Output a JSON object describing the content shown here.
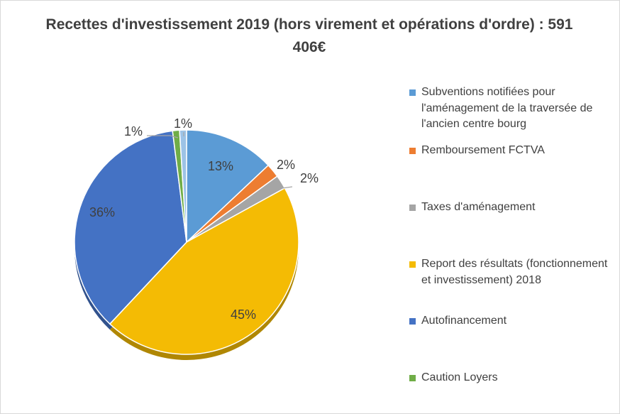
{
  "chart_data": {
    "type": "pie",
    "title": "Recettes d'investissement 2019 (hors virement et opérations d'ordre) : 591 406€",
    "slices": [
      {
        "label": "Subventions notifiées pour l'aménagement de la traversée de l'ancien centre bourg",
        "value": 13,
        "display": "13%",
        "color": "#5b9bd5"
      },
      {
        "label": "Remboursement FCTVA",
        "value": 2,
        "display": "2%",
        "color": "#ed7d31"
      },
      {
        "label": "Taxes d'aménagement",
        "value": 2,
        "display": "2%",
        "color": "#a5a5a5"
      },
      {
        "label": "Report des résultats (fonctionnement et investissement) 2018",
        "value": 45,
        "display": "45%",
        "color": "#f4bb04"
      },
      {
        "label": "Autofinancement",
        "value": 36,
        "display": "36%",
        "color": "#4472c4"
      },
      {
        "label": "Caution Loyers",
        "value": 1,
        "display": "1%",
        "color": "#70ad47"
      },
      {
        "label": "",
        "value": 1,
        "display": "1%",
        "color": "#9dc3e6"
      }
    ],
    "legend_position": "right"
  }
}
